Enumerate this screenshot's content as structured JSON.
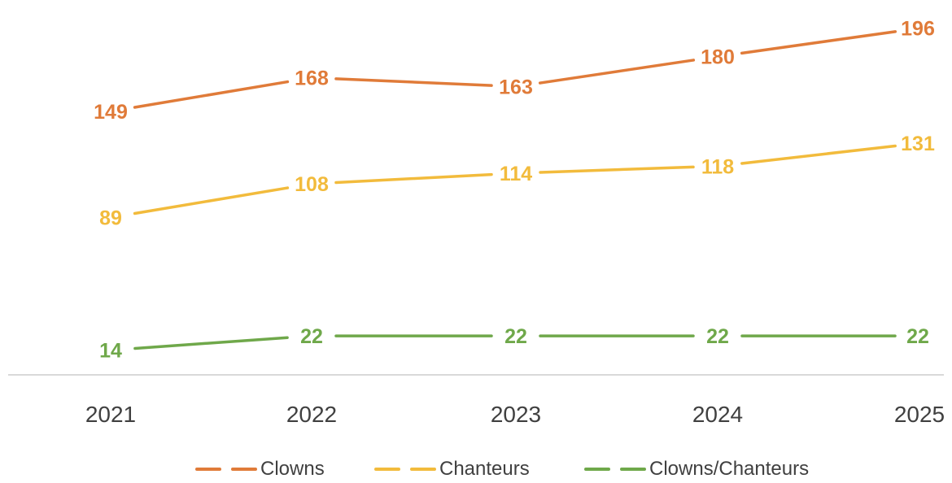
{
  "chart_data": {
    "type": "line",
    "categories": [
      "2021",
      "2022",
      "2023",
      "2024",
      "2025"
    ],
    "series": [
      {
        "name": "Clowns",
        "values": [
          149,
          168,
          163,
          180,
          196
        ],
        "color": "#e07b39"
      },
      {
        "name": "Chanteurs",
        "values": [
          89,
          108,
          114,
          118,
          131
        ],
        "color": "#f2bb3c"
      },
      {
        "name": "Clowns/Chanteurs",
        "values": [
          14,
          22,
          22,
          22,
          22
        ],
        "color": "#6fa84a"
      }
    ],
    "title": "",
    "xlabel": "",
    "ylabel": "",
    "ylim": [
      0,
      200
    ],
    "grid": false,
    "axis_color": "#d9d9d9",
    "tick_color": "#404040",
    "legend_position": "bottom",
    "data_labels": true
  }
}
